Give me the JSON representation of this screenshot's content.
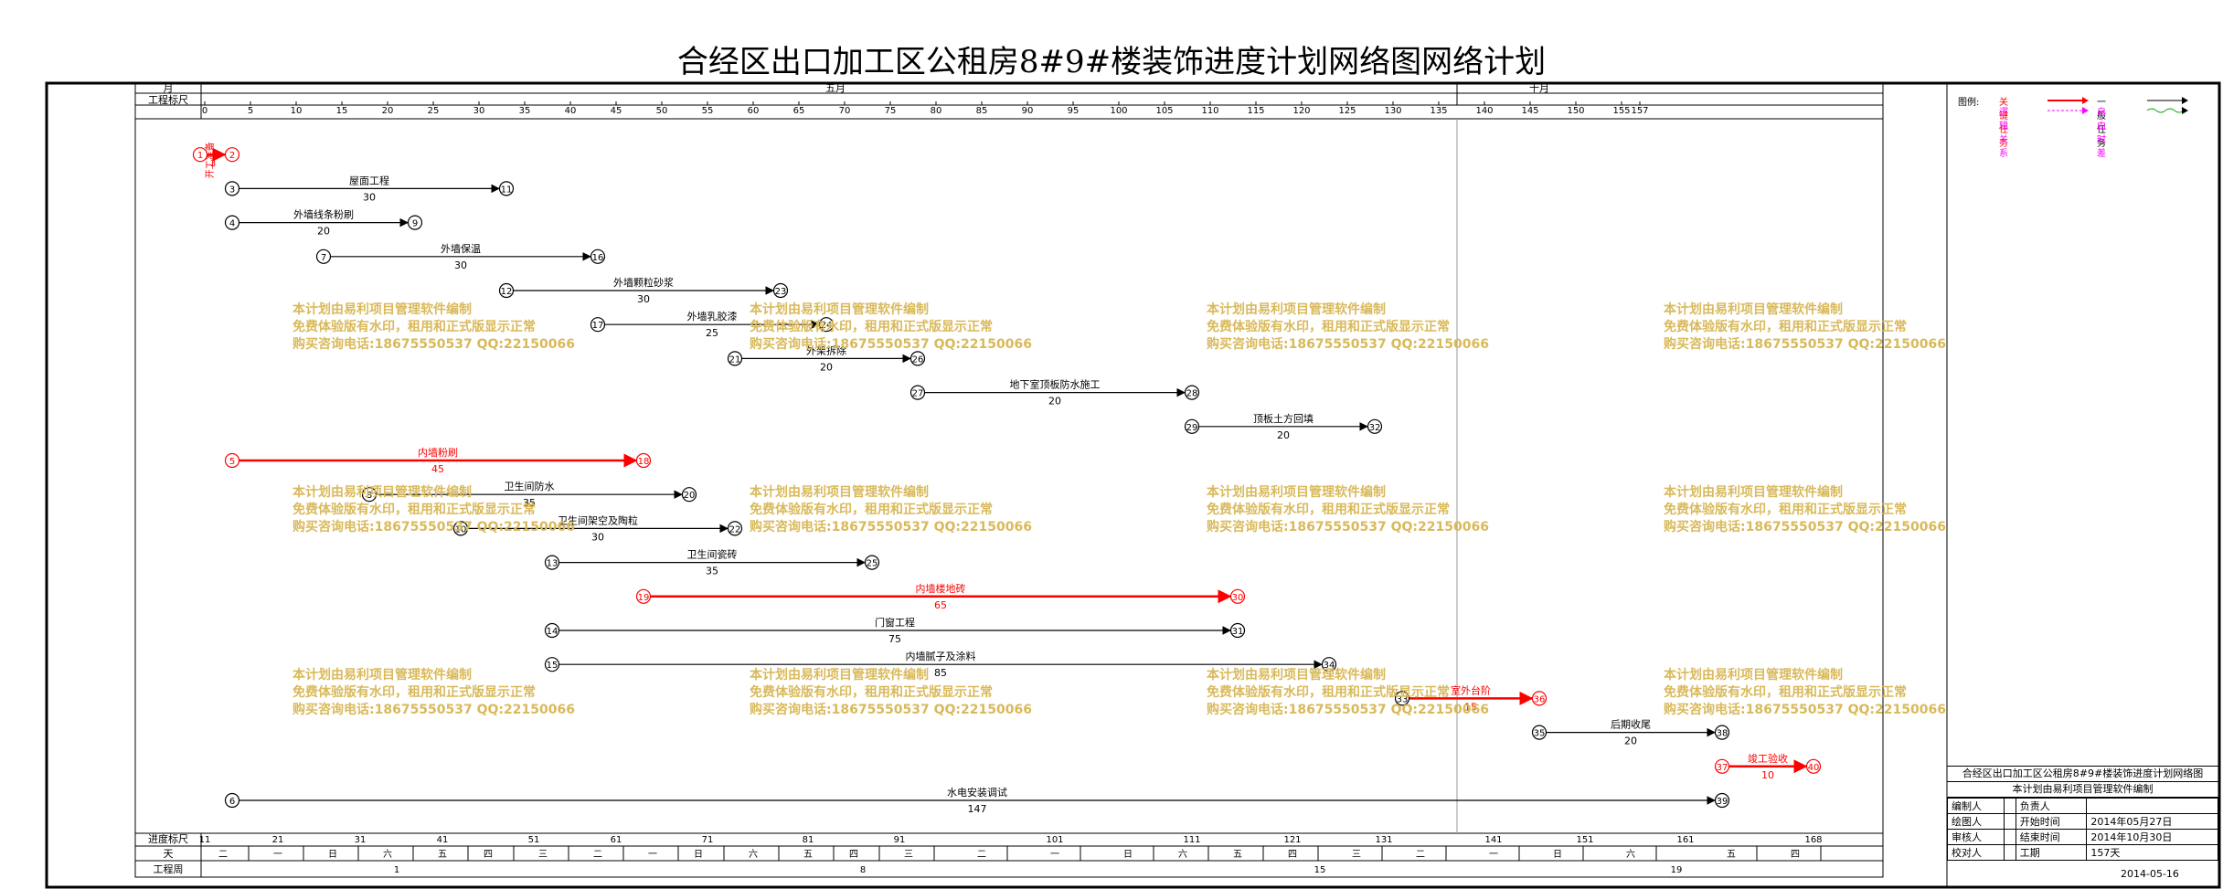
{
  "title": "合经区出口加工区公租房8#9#楼装饰进度计划网络图网络计划",
  "header": {
    "month_label": "月",
    "scale_label": "工程标尺",
    "months": [
      {
        "label": "五月",
        "day": 69
      },
      {
        "label": "十月",
        "day": 146
      }
    ],
    "ticks": [
      0,
      5,
      10,
      15,
      20,
      25,
      30,
      35,
      40,
      45,
      50,
      55,
      60,
      65,
      70,
      75,
      80,
      85,
      90,
      95,
      100,
      105,
      110,
      115,
      120,
      125,
      130,
      135,
      140,
      145,
      150,
      155,
      157
    ]
  },
  "footer": {
    "progress_label": "进度标尺",
    "progress_ticks": [
      {
        "label": "11",
        "day": 0
      },
      {
        "label": "21",
        "day": 8
      },
      {
        "label": "31",
        "day": 17
      },
      {
        "label": "41",
        "day": 26
      },
      {
        "label": "51",
        "day": 36
      },
      {
        "label": "61",
        "day": 45
      },
      {
        "label": "71",
        "day": 55
      },
      {
        "label": "81",
        "day": 66
      },
      {
        "label": "91",
        "day": 76
      },
      {
        "label": "101",
        "day": 93
      },
      {
        "label": "111",
        "day": 108
      },
      {
        "label": "121",
        "day": 119
      },
      {
        "label": "131",
        "day": 129
      },
      {
        "label": "141",
        "day": 141
      },
      {
        "label": "151",
        "day": 151
      },
      {
        "label": "161",
        "day": 162
      },
      {
        "label": "168",
        "day": 176
      }
    ],
    "day_label": "天",
    "weekdays": [
      {
        "label": "二",
        "day": 2
      },
      {
        "label": "一",
        "day": 8
      },
      {
        "label": "日",
        "day": 14
      },
      {
        "label": "六",
        "day": 20
      },
      {
        "label": "五",
        "day": 26
      },
      {
        "label": "四",
        "day": 31
      },
      {
        "label": "三",
        "day": 37
      },
      {
        "label": "二",
        "day": 43
      },
      {
        "label": "一",
        "day": 49
      },
      {
        "label": "日",
        "day": 54
      },
      {
        "label": "六",
        "day": 60
      },
      {
        "label": "五",
        "day": 66
      },
      {
        "label": "四",
        "day": 71
      },
      {
        "label": "三",
        "day": 77
      },
      {
        "label": "二",
        "day": 85
      },
      {
        "label": "一",
        "day": 93
      },
      {
        "label": "日",
        "day": 101
      },
      {
        "label": "六",
        "day": 107
      },
      {
        "label": "五",
        "day": 113
      },
      {
        "label": "四",
        "day": 119
      },
      {
        "label": "三",
        "day": 126
      },
      {
        "label": "二",
        "day": 133
      },
      {
        "label": "一",
        "day": 141
      },
      {
        "label": "日",
        "day": 148
      },
      {
        "label": "六",
        "day": 156
      },
      {
        "label": "五",
        "day": 167
      },
      {
        "label": "四",
        "day": 174
      }
    ],
    "week_label": "工程周",
    "weeks": [
      {
        "label": "1",
        "day": 21
      },
      {
        "label": "8",
        "day": 72
      },
      {
        "label": "15",
        "day": 122
      },
      {
        "label": "19",
        "day": 161
      }
    ]
  },
  "nodes": [
    {
      "id": "1",
      "day": -0.5,
      "row": 1,
      "critical": true
    },
    {
      "id": "2",
      "day": 3,
      "row": 1,
      "critical": true
    },
    {
      "id": "3",
      "day": 3,
      "row": 2,
      "critical": false
    },
    {
      "id": "11",
      "day": 33,
      "row": 2,
      "critical": false
    },
    {
      "id": "4",
      "day": 3,
      "row": 3,
      "critical": false
    },
    {
      "id": "9",
      "day": 23,
      "row": 3,
      "critical": false
    },
    {
      "id": "7",
      "day": 13,
      "row": 4,
      "critical": false
    },
    {
      "id": "16",
      "day": 43,
      "row": 4,
      "critical": false
    },
    {
      "id": "12",
      "day": 33,
      "row": 5,
      "critical": false
    },
    {
      "id": "23",
      "day": 63,
      "row": 5,
      "critical": false
    },
    {
      "id": "17",
      "day": 43,
      "row": 6,
      "critical": false
    },
    {
      "id": "24",
      "day": 68,
      "row": 6,
      "critical": false
    },
    {
      "id": "21",
      "day": 58,
      "row": 7,
      "critical": false
    },
    {
      "id": "26",
      "day": 78,
      "row": 7,
      "critical": false
    },
    {
      "id": "27",
      "day": 78,
      "row": 8,
      "critical": false
    },
    {
      "id": "28",
      "day": 108,
      "row": 8,
      "critical": false
    },
    {
      "id": "29",
      "day": 108,
      "row": 9,
      "critical": false
    },
    {
      "id": "32",
      "day": 128,
      "row": 9,
      "critical": false
    },
    {
      "id": "5",
      "day": 3,
      "row": 10,
      "critical": true
    },
    {
      "id": "18",
      "day": 48,
      "row": 10,
      "critical": true
    },
    {
      "id": "8",
      "day": 18,
      "row": 11,
      "critical": false
    },
    {
      "id": "20",
      "day": 53,
      "row": 11,
      "critical": false
    },
    {
      "id": "10",
      "day": 28,
      "row": 12,
      "critical": false
    },
    {
      "id": "22",
      "day": 58,
      "row": 12,
      "critical": false
    },
    {
      "id": "13",
      "day": 38,
      "row": 13,
      "critical": false
    },
    {
      "id": "25",
      "day": 73,
      "row": 13,
      "critical": false
    },
    {
      "id": "19",
      "day": 48,
      "row": 14,
      "critical": true
    },
    {
      "id": "30",
      "day": 113,
      "row": 14,
      "critical": true
    },
    {
      "id": "14",
      "day": 38,
      "row": 15,
      "critical": false
    },
    {
      "id": "31",
      "day": 113,
      "row": 15,
      "critical": false
    },
    {
      "id": "15",
      "day": 38,
      "row": 16,
      "critical": false
    },
    {
      "id": "34",
      "day": 123,
      "row": 16,
      "critical": false
    },
    {
      "id": "33",
      "day": 131,
      "row": 17,
      "critical": false
    },
    {
      "id": "36",
      "day": 146,
      "row": 17,
      "critical": true
    },
    {
      "id": "35",
      "day": 146,
      "row": 18,
      "critical": false
    },
    {
      "id": "38",
      "day": 166,
      "row": 18,
      "critical": false
    },
    {
      "id": "37",
      "day": 166,
      "row": 19,
      "critical": true
    },
    {
      "id": "40",
      "day": 176,
      "row": 19,
      "critical": true
    },
    {
      "id": "6",
      "day": 3,
      "row": 20,
      "critical": false
    },
    {
      "id": "39",
      "day": 166,
      "row": 20,
      "critical": false
    }
  ],
  "tasks": [
    {
      "from": "1",
      "to": "2",
      "name": "开工准备",
      "duration": "3",
      "critical": true,
      "vertical": true
    },
    {
      "from": "3",
      "to": "11",
      "name": "屋面工程",
      "duration": "30",
      "critical": false
    },
    {
      "from": "4",
      "to": "9",
      "name": "外墙线条粉刷",
      "duration": "20",
      "critical": false
    },
    {
      "from": "7",
      "to": "16",
      "name": "外墙保温",
      "duration": "30",
      "critical": false
    },
    {
      "from": "12",
      "to": "23",
      "name": "外墙颗粒砂浆",
      "duration": "30",
      "critical": false
    },
    {
      "from": "17",
      "to": "24",
      "name": "外墙乳胶漆",
      "duration": "25",
      "critical": false
    },
    {
      "from": "21",
      "to": "26",
      "name": "外架拆除",
      "duration": "20",
      "critical": false
    },
    {
      "from": "27",
      "to": "28",
      "name": "地下室顶板防水施工",
      "duration": "20",
      "critical": false
    },
    {
      "from": "29",
      "to": "32",
      "name": "顶板土方回填",
      "duration": "20",
      "critical": false
    },
    {
      "from": "5",
      "to": "18",
      "name": "内墙粉刷",
      "duration": "45",
      "critical": true
    },
    {
      "from": "8",
      "to": "20",
      "name": "卫生间防水",
      "duration": "35",
      "critical": false
    },
    {
      "from": "10",
      "to": "22",
      "name": "卫生间架空及陶粒",
      "duration": "30",
      "critical": false
    },
    {
      "from": "13",
      "to": "25",
      "name": "卫生间瓷砖",
      "duration": "35",
      "critical": false
    },
    {
      "from": "19",
      "to": "30",
      "name": "内墙楼地砖",
      "duration": "65",
      "critical": true
    },
    {
      "from": "14",
      "to": "31",
      "name": "门窗工程",
      "duration": "75",
      "critical": false
    },
    {
      "from": "15",
      "to": "34",
      "name": "内墙腻子及涂料",
      "duration": "85",
      "critical": false
    },
    {
      "from": "33",
      "to": "36",
      "name": "室外台阶",
      "duration": "15",
      "critical": true
    },
    {
      "from": "35",
      "to": "38",
      "name": "后期收尾",
      "duration": "20",
      "critical": false
    },
    {
      "from": "37",
      "to": "40",
      "name": "竣工验收",
      "duration": "10",
      "critical": true
    },
    {
      "from": "6",
      "to": "39",
      "name": "水电安装调试",
      "duration": "147",
      "critical": false
    }
  ],
  "watermark": {
    "line1": "本计划由易利项目管理软件编制",
    "line2": "免费体验版有水印，租用和正式版显示正常",
    "line3": "购买咨询电话:18675550537 QQ:22150066"
  },
  "legend": {
    "label": "图例:",
    "key_work": "关键任务",
    "normal_work": "一般任务",
    "logic": "逻辑关系",
    "free_float": "自由时差",
    "colors": {
      "critical": "#ff0000",
      "normal": "#000000",
      "logic": "#ff00ff",
      "free": "#00aa00"
    }
  },
  "info": {
    "title": "合经区出口加工区公租房8#9#楼装饰进度计划网络图",
    "subtitle": "本计划由易利项目管理软件编制",
    "rows": [
      [
        "编制人",
        "",
        "负责人",
        ""
      ],
      [
        "绘图人",
        "",
        "开始时间",
        "2014年05月27日"
      ],
      [
        "审核人",
        "",
        "结束时间",
        "2014年10月30日"
      ],
      [
        "校对人",
        "",
        "工期",
        "157天"
      ]
    ],
    "date": "2014-05-16"
  }
}
